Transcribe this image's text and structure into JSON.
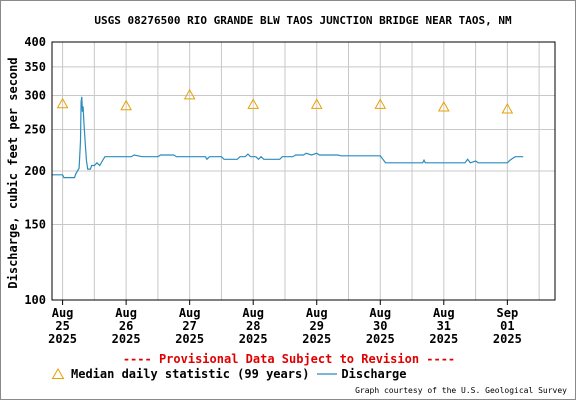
{
  "chart_data": {
    "type": "line",
    "title": "USGS 08276500 RIO GRANDE BLW TAOS JUNCTION BRIDGE NEAR TAOS, NM",
    "ylabel": "Discharge, cubic feet per second",
    "y_scale": "log",
    "ylim": [
      100,
      400
    ],
    "y_ticks": [
      100,
      150,
      200,
      250,
      300,
      350,
      400
    ],
    "xlim": [
      "2025-08-24T20:00",
      "2025-09-01T18:00"
    ],
    "x_ticks": [
      {
        "date": "2025-08-25",
        "label": [
          "Aug",
          "25",
          "2025"
        ]
      },
      {
        "date": "2025-08-26",
        "label": [
          "Aug",
          "26",
          "2025"
        ]
      },
      {
        "date": "2025-08-27",
        "label": [
          "Aug",
          "27",
          "2025"
        ]
      },
      {
        "date": "2025-08-28",
        "label": [
          "Aug",
          "28",
          "2025"
        ]
      },
      {
        "date": "2025-08-29",
        "label": [
          "Aug",
          "29",
          "2025"
        ]
      },
      {
        "date": "2025-08-30",
        "label": [
          "Aug",
          "30",
          "2025"
        ]
      },
      {
        "date": "2025-08-31",
        "label": [
          "Aug",
          "31",
          "2025"
        ]
      },
      {
        "date": "2025-09-01",
        "label": [
          "Sep",
          "01",
          "2025"
        ]
      }
    ],
    "grid": true,
    "series": [
      {
        "name": "Median daily statistic (99 years)",
        "marker": "triangle",
        "color": "#e8a000",
        "points": [
          [
            "2025-08-25T00:00",
            287
          ],
          [
            "2025-08-26T00:00",
            284
          ],
          [
            "2025-08-27T00:00",
            301
          ],
          [
            "2025-08-28T00:00",
            286
          ],
          [
            "2025-08-29T00:00",
            286
          ],
          [
            "2025-08-30T00:00",
            286
          ],
          [
            "2025-08-31T00:00",
            282
          ],
          [
            "2025-09-01T00:00",
            279
          ]
        ]
      },
      {
        "name": "Discharge",
        "color": "#2b8cbe",
        "points": [
          [
            "2025-08-24T20:00",
            196
          ],
          [
            "2025-08-25T00:00",
            196
          ],
          [
            "2025-08-25T00:30",
            193
          ],
          [
            "2025-08-25T04:30",
            193
          ],
          [
            "2025-08-25T05:00",
            197
          ],
          [
            "2025-08-25T06:15",
            203
          ],
          [
            "2025-08-25T06:45",
            235
          ],
          [
            "2025-08-25T07:00",
            290
          ],
          [
            "2025-08-25T07:15",
            298
          ],
          [
            "2025-08-25T07:30",
            275
          ],
          [
            "2025-08-25T07:45",
            283
          ],
          [
            "2025-08-25T08:00",
            262
          ],
          [
            "2025-08-25T08:30",
            235
          ],
          [
            "2025-08-25T09:00",
            212
          ],
          [
            "2025-08-25T09:30",
            202
          ],
          [
            "2025-08-25T10:30",
            202
          ],
          [
            "2025-08-25T11:00",
            206
          ],
          [
            "2025-08-25T12:00",
            206
          ],
          [
            "2025-08-25T13:00",
            209
          ],
          [
            "2025-08-25T14:00",
            206
          ],
          [
            "2025-08-25T15:00",
            211
          ],
          [
            "2025-08-25T16:00",
            216
          ],
          [
            "2025-08-26T02:00",
            216
          ],
          [
            "2025-08-26T03:00",
            218
          ],
          [
            "2025-08-26T06:00",
            216
          ],
          [
            "2025-08-26T12:00",
            216
          ],
          [
            "2025-08-26T13:00",
            218
          ],
          [
            "2025-08-26T18:00",
            218
          ],
          [
            "2025-08-26T19:00",
            216
          ],
          [
            "2025-08-27T06:00",
            216
          ],
          [
            "2025-08-27T06:30",
            213
          ],
          [
            "2025-08-27T07:30",
            216
          ],
          [
            "2025-08-27T12:00",
            216
          ],
          [
            "2025-08-27T13:00",
            213
          ],
          [
            "2025-08-27T18:00",
            213
          ],
          [
            "2025-08-27T19:00",
            216
          ],
          [
            "2025-08-27T21:00",
            216
          ],
          [
            "2025-08-27T22:00",
            219
          ],
          [
            "2025-08-27T23:00",
            216
          ],
          [
            "2025-08-28T01:00",
            216
          ],
          [
            "2025-08-28T02:00",
            213
          ],
          [
            "2025-08-28T03:00",
            216
          ],
          [
            "2025-08-28T04:00",
            213
          ],
          [
            "2025-08-28T06:00",
            213
          ],
          [
            "2025-08-28T10:00",
            213
          ],
          [
            "2025-08-28T11:00",
            216
          ],
          [
            "2025-08-28T15:00",
            216
          ],
          [
            "2025-08-28T16:00",
            218
          ],
          [
            "2025-08-28T19:00",
            218
          ],
          [
            "2025-08-28T20:00",
            220
          ],
          [
            "2025-08-28T22:00",
            218
          ],
          [
            "2025-08-29T00:00",
            220
          ],
          [
            "2025-08-29T01:00",
            218
          ],
          [
            "2025-08-29T08:00",
            218
          ],
          [
            "2025-08-29T09:00",
            217
          ],
          [
            "2025-08-30T00:00",
            217
          ],
          [
            "2025-08-30T01:00",
            213
          ],
          [
            "2025-08-30T02:00",
            209
          ],
          [
            "2025-08-30T16:00",
            209
          ],
          [
            "2025-08-30T16:30",
            212
          ],
          [
            "2025-08-30T17:00",
            209
          ],
          [
            "2025-08-31T08:00",
            209
          ],
          [
            "2025-08-31T09:00",
            213
          ],
          [
            "2025-08-31T10:00",
            209
          ],
          [
            "2025-08-31T12:00",
            211
          ],
          [
            "2025-08-31T13:00",
            209
          ],
          [
            "2025-09-01T00:00",
            209
          ],
          [
            "2025-09-01T01:00",
            212
          ],
          [
            "2025-09-01T02:00",
            214
          ],
          [
            "2025-09-01T03:00",
            216
          ],
          [
            "2025-09-01T06:00",
            216
          ]
        ]
      }
    ]
  },
  "provisional_notice": "---- Provisional Data Subject to Revision ----",
  "legend": {
    "median_label": "Median daily statistic (99 years)",
    "discharge_label": "Discharge"
  },
  "credit": "Graph courtesy of the U.S. Geological Survey",
  "colors": {
    "median_marker": "#e8a000",
    "discharge_line": "#2b8cbe",
    "provisional": "#e00000",
    "grid": "#c8c8c8"
  }
}
